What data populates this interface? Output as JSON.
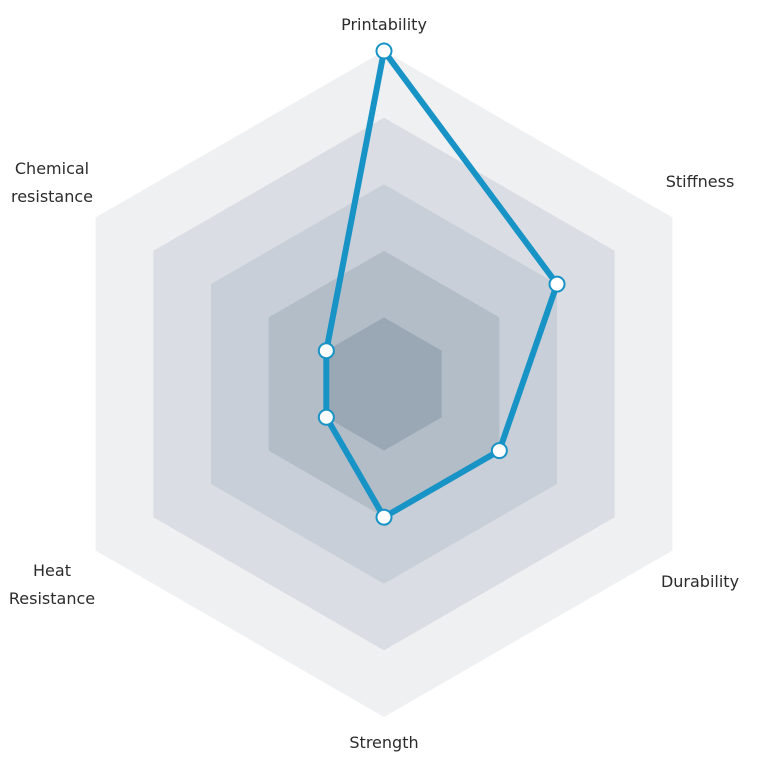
{
  "chart_data": {
    "type": "radar",
    "axes": [
      "Printability",
      "Stiffness",
      "Durability",
      "Strength",
      "Heat Resistance",
      "Chemical resistance"
    ],
    "axis_labels": [
      [
        "Printability"
      ],
      [
        "Stiffness"
      ],
      [
        "Durability"
      ],
      [
        "Strength"
      ],
      [
        "Heat",
        "Resistance"
      ],
      [
        "Chemical",
        "resistance"
      ]
    ],
    "levels": 5,
    "range": [
      0,
      5
    ],
    "series": [
      {
        "values": [
          5.0,
          3.0,
          2.0,
          2.0,
          1.0,
          1.0
        ]
      }
    ],
    "grid": true,
    "colors": {
      "line": "#1793c6",
      "marker_fill": "#ffffff",
      "bands": [
        "#eff0f2",
        "#dadee4",
        "#c8cfd8",
        "#b3bdc8",
        "#9aa8b6"
      ],
      "label": "#2b2b2b"
    }
  }
}
